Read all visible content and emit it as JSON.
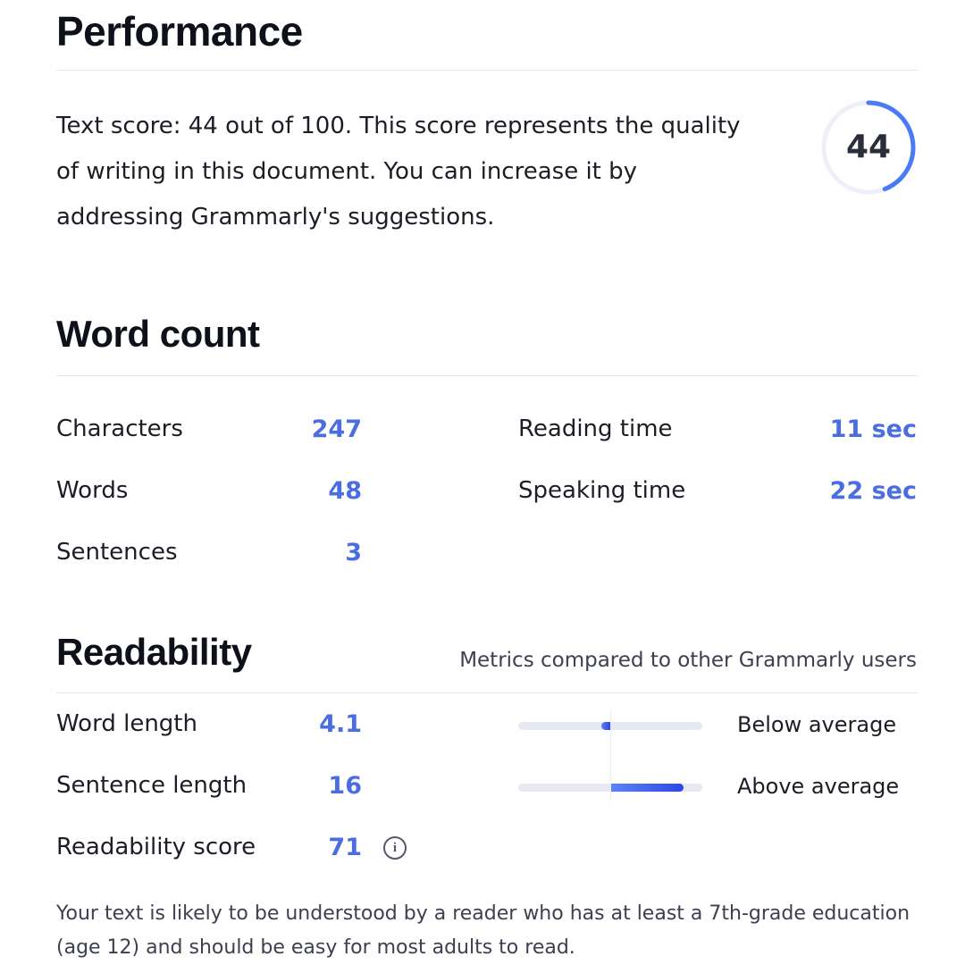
{
  "performance": {
    "title": "Performance",
    "description": "Text score: 44 out of 100. This score represents the quality of writing in this document. You can increase it by addressing Grammarly's suggestions.",
    "score": "44",
    "score_max": 100,
    "ring_color": "#4a7af5"
  },
  "word_count": {
    "title": "Word count",
    "left": [
      {
        "label": "Characters",
        "value": "247"
      },
      {
        "label": "Words",
        "value": "48"
      },
      {
        "label": "Sentences",
        "value": "3"
      }
    ],
    "right": [
      {
        "label": "Reading time",
        "value": "11 sec"
      },
      {
        "label": "Speaking time",
        "value": "22 sec"
      }
    ]
  },
  "readability": {
    "title": "Readability",
    "subtitle": "Metrics compared to other Grammarly users",
    "metrics": [
      {
        "label": "Word length",
        "value": "4.1",
        "comparison": "Below average",
        "deviation": -0.05
      },
      {
        "label": "Sentence length",
        "value": "16",
        "comparison": "Above average",
        "deviation": 0.4
      }
    ],
    "score": {
      "label": "Readability score",
      "value": "71",
      "icon": "info-icon",
      "icon_glyph": "i"
    },
    "note": "Your text is likely to be understood by a reader who has at least a 7th-grade education (age 12) and should be easy for most adults to read."
  },
  "accent_color": "#4a6ee0"
}
